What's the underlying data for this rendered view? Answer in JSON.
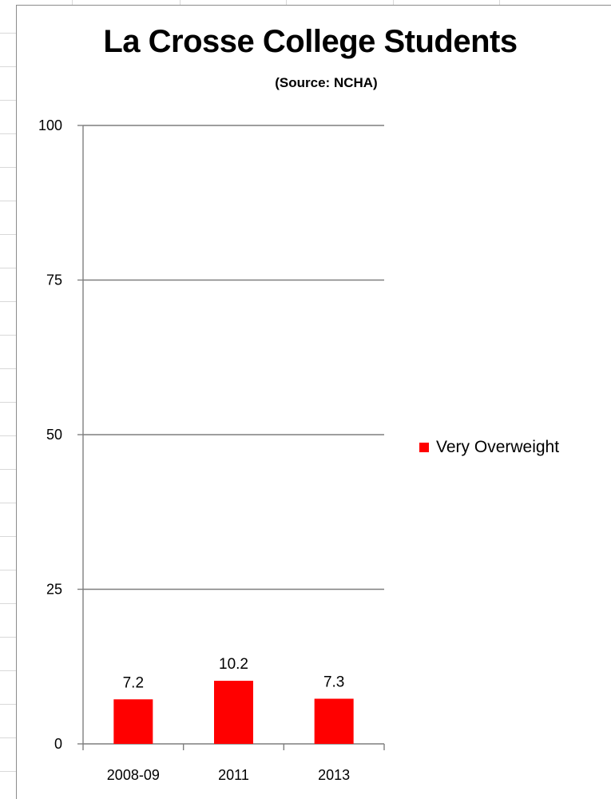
{
  "chart_data": {
    "type": "bar",
    "title": "La Crosse College Students",
    "subtitle": "(Source: NCHA)",
    "categories": [
      "2008-09",
      "2011",
      "2013"
    ],
    "series": [
      {
        "name": "Very Overweight",
        "values": [
          7.2,
          10.2,
          7.3
        ],
        "color": "#ff0000"
      }
    ],
    "y_ticks": [
      0,
      25,
      50,
      75,
      100
    ],
    "ylim": [
      0,
      100
    ],
    "grid": true,
    "legend_position": "right"
  }
}
